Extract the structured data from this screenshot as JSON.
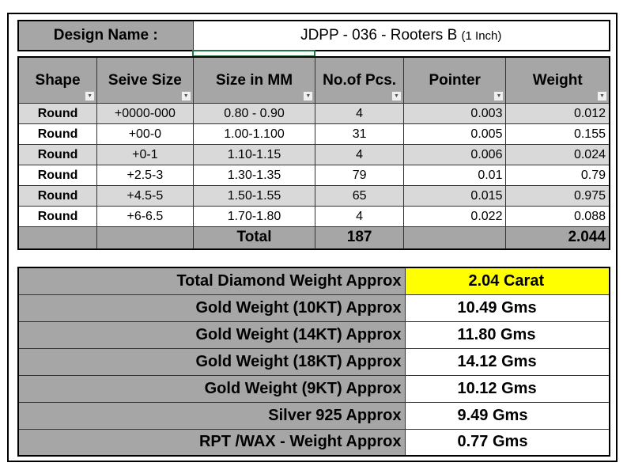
{
  "design": {
    "label": "Design Name :",
    "value": "JDPP - 036 - Rooters B",
    "note": "(1 Inch)"
  },
  "headers": [
    "Shape",
    "Seive Size",
    "Size in MM",
    "No.of Pcs.",
    "Pointer",
    "Weight"
  ],
  "rows": [
    [
      "Round",
      "+0000-000",
      "0.80 - 0.90",
      "4",
      "0.003",
      "0.012"
    ],
    [
      "Round",
      "+00-0",
      "1.00-1.100",
      "31",
      "0.005",
      "0.155"
    ],
    [
      "Round",
      "+0-1",
      "1.10-1.15",
      "4",
      "0.006",
      "0.024"
    ],
    [
      "Round",
      "+2.5-3",
      "1.30-1.35",
      "79",
      "0.01",
      "0.79"
    ],
    [
      "Round",
      "+4.5-5",
      "1.50-1.55",
      "65",
      "0.015",
      "0.975"
    ],
    [
      "Round",
      "+6-6.5",
      "1.70-1.80",
      "4",
      "0.022",
      "0.088"
    ]
  ],
  "total": {
    "label": "Total",
    "pcs": "187",
    "weight": "2.044"
  },
  "summary": [
    {
      "label": "Total Diamond Weight Approx",
      "value": "2.04 Carat"
    },
    {
      "label": "Gold Weight (10KT) Approx",
      "value": "10.49 Gms"
    },
    {
      "label": "Gold Weight (14KT) Approx",
      "value": "11.80 Gms"
    },
    {
      "label": "Gold Weight (18KT) Approx",
      "value": "14.12 Gms"
    },
    {
      "label": "Gold Weight (9KT) Approx",
      "value": "10.12 Gms"
    },
    {
      "label": "Silver 925 Approx",
      "value": "9.49 Gms"
    },
    {
      "label": "RPT /WAX - Weight Approx",
      "value": "0.77 Gms"
    }
  ],
  "colors": {
    "header": "#a6a6a6",
    "highlight": "#ffff00"
  }
}
